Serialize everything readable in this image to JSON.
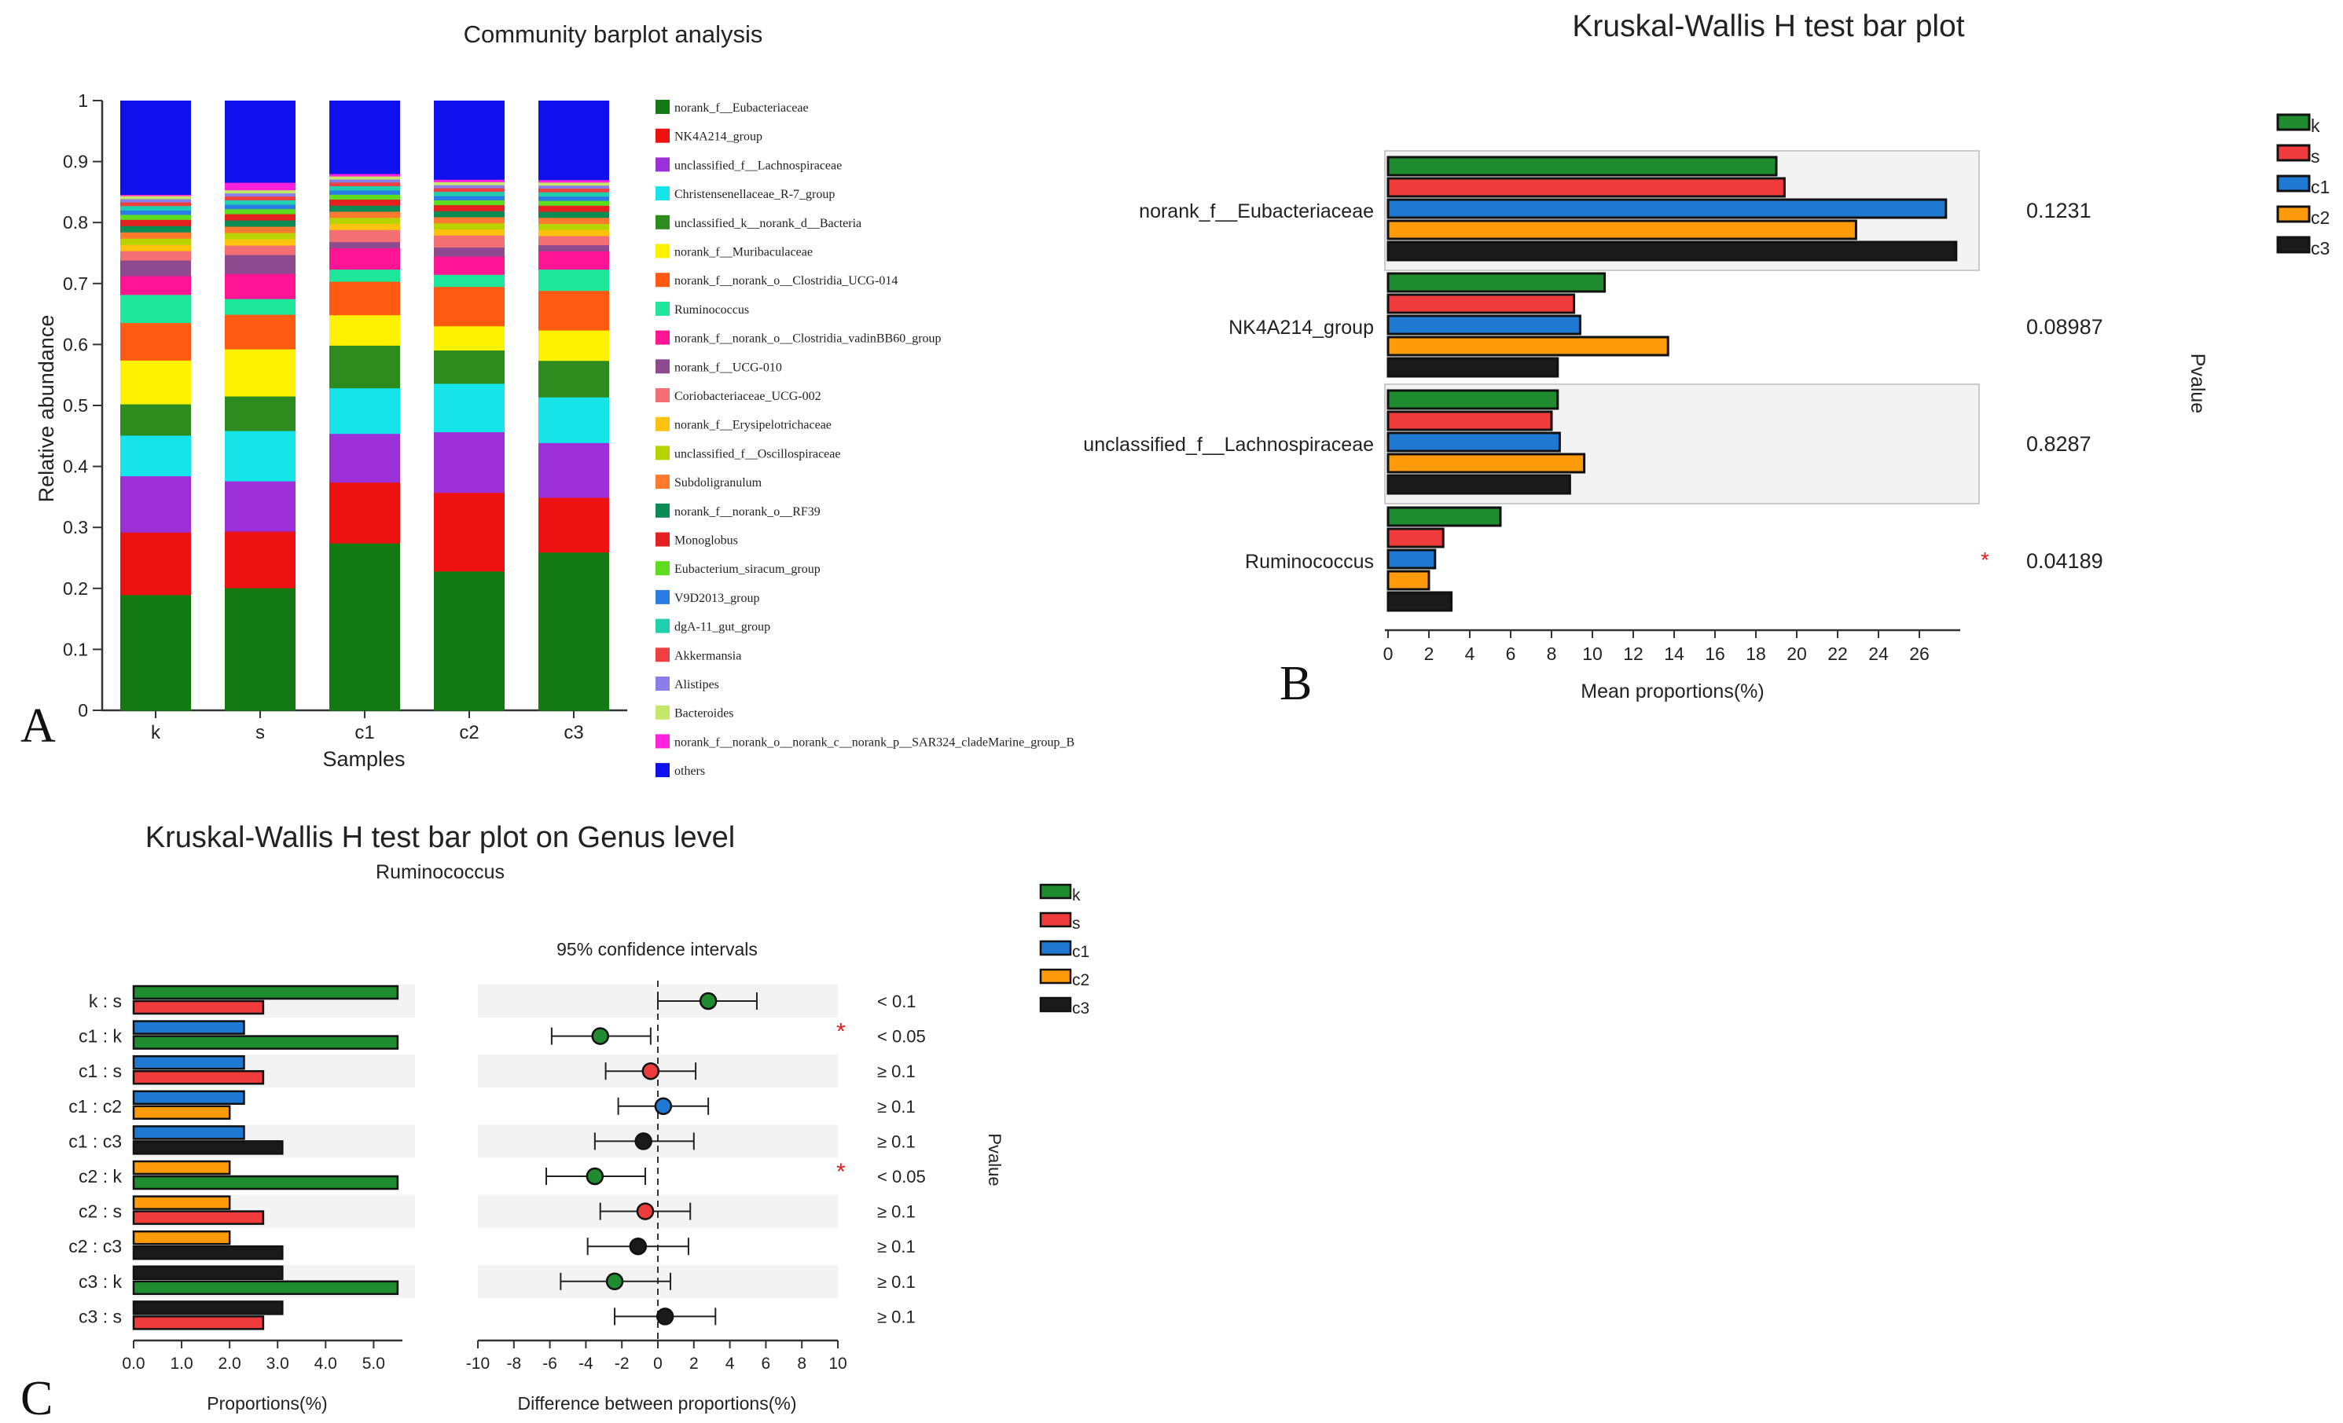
{
  "figure_labels": {
    "a": "A",
    "b": "B",
    "c": "C"
  },
  "colors": {
    "k": "#1e8c2f",
    "s": "#ef3b3b",
    "c1": "#1f78d1",
    "c2": "#ff9a0a",
    "c3": "#1a1a1a",
    "band": "#f3f3f3",
    "star": "#e02020"
  },
  "chart_data": [
    {
      "id": "A",
      "type": "bar",
      "stacked": true,
      "title": "Community barplot analysis",
      "xlabel": "Samples",
      "ylabel": "Relative abundance",
      "ylim": [
        0,
        1
      ],
      "yticks": [
        "0",
        "0.1",
        "0.2",
        "0.3",
        "0.4",
        "0.5",
        "0.6",
        "0.7",
        "0.8",
        "0.9",
        "1"
      ],
      "categories": [
        "k",
        "s",
        "c1",
        "c2",
        "c3"
      ],
      "series": [
        {
          "name": "norank_f__Eubacteriaceae",
          "color": "#137a13",
          "values": [
            0.185,
            0.195,
            0.275,
            0.23,
            0.26
          ]
        },
        {
          "name": "NK4A214_group",
          "color": "#ee1111",
          "values": [
            0.1,
            0.09,
            0.1,
            0.13,
            0.09
          ]
        },
        {
          "name": "unclassified_f__Lachnospiraceae",
          "color": "#9b30d8",
          "values": [
            0.09,
            0.08,
            0.08,
            0.1,
            0.09
          ]
        },
        {
          "name": "Christensenellaceae_R-7_group",
          "color": "#15e5e8",
          "values": [
            0.065,
            0.08,
            0.075,
            0.08,
            0.075
          ]
        },
        {
          "name": "unclassified_k__norank_d__Bacteria",
          "color": "#2e8b1e",
          "values": [
            0.05,
            0.055,
            0.07,
            0.055,
            0.06
          ]
        },
        {
          "name": "norank_f__Muribaculaceae",
          "color": "#fff200",
          "values": [
            0.07,
            0.075,
            0.05,
            0.04,
            0.05
          ]
        },
        {
          "name": "norank_f__norank_o__Clostridia_UCG-014",
          "color": "#ff5a12",
          "values": [
            0.06,
            0.055,
            0.055,
            0.065,
            0.065
          ]
        },
        {
          "name": "Ruminococcus",
          "color": "#1ee69a",
          "values": [
            0.045,
            0.025,
            0.02,
            0.02,
            0.035
          ]
        },
        {
          "name": "norank_f__norank_o__Clostridia_vadinBB60_group",
          "color": "#ff1493",
          "values": [
            0.03,
            0.04,
            0.035,
            0.03,
            0.03
          ]
        },
        {
          "name": "norank_f__UCG-010",
          "color": "#8e4a8e",
          "values": [
            0.025,
            0.03,
            0.01,
            0.015,
            0.01
          ]
        },
        {
          "name": "Coriobacteriaceae_UCG-002",
          "color": "#f36f73",
          "values": [
            0.015,
            0.015,
            0.02,
            0.02,
            0.015
          ]
        },
        {
          "name": "norank_f__Erysipelotrichaceae",
          "color": "#ffc20e",
          "values": [
            0.01,
            0.01,
            0.01,
            0.01,
            0.01
          ]
        },
        {
          "name": "unclassified_f__Oscillospiraceae",
          "color": "#b8d400",
          "values": [
            0.01,
            0.01,
            0.01,
            0.01,
            0.01
          ]
        },
        {
          "name": "Subdoligranulum",
          "color": "#ff7a2e",
          "values": [
            0.01,
            0.01,
            0.01,
            0.01,
            0.01
          ]
        },
        {
          "name": "norank_f__norank_o__RF39",
          "color": "#0d8b55",
          "values": [
            0.01,
            0.01,
            0.01,
            0.01,
            0.01
          ]
        },
        {
          "name": "Monoglobus",
          "color": "#e52020",
          "values": [
            0.01,
            0.01,
            0.01,
            0.01,
            0.01
          ]
        },
        {
          "name": "Eubacterium_siracum_group",
          "color": "#5edc1e",
          "values": [
            0.008,
            0.008,
            0.008,
            0.008,
            0.008
          ]
        },
        {
          "name": "V9D2013_group",
          "color": "#2c7ce6",
          "values": [
            0.007,
            0.007,
            0.007,
            0.007,
            0.007
          ]
        },
        {
          "name": "dgA-11_gut_group",
          "color": "#20cfae",
          "values": [
            0.007,
            0.007,
            0.007,
            0.007,
            0.007
          ]
        },
        {
          "name": "Akkermansia",
          "color": "#ee4040",
          "values": [
            0.006,
            0.006,
            0.006,
            0.006,
            0.006
          ]
        },
        {
          "name": "Alistipes",
          "color": "#8a7ee8",
          "values": [
            0.005,
            0.005,
            0.005,
            0.005,
            0.005
          ]
        },
        {
          "name": "Bacteroides",
          "color": "#c4e86a",
          "values": [
            0.005,
            0.005,
            0.005,
            0.005,
            0.005
          ]
        },
        {
          "name": "norank_f__norank_o__norank_c__norank_p__SAR324_cladeMarine_group_B",
          "color": "#ff22dd",
          "values": [
            0.002,
            0.012,
            0.004,
            0.004,
            0.004
          ]
        },
        {
          "name": "others",
          "color": "#1010ee",
          "values": [
            0.15,
            0.13,
            0.12,
            0.13,
            0.13
          ]
        }
      ]
    },
    {
      "id": "B",
      "type": "bar",
      "orientation": "horizontal",
      "title": "Kruskal-Wallis H test bar plot",
      "xlabel": "Mean proportions(%)",
      "xlim": [
        0,
        28
      ],
      "xticks": [
        "0",
        "2",
        "4",
        "6",
        "8",
        "10",
        "12",
        "14",
        "16",
        "18",
        "20",
        "22",
        "24",
        "26"
      ],
      "pvalue_label": "Pvalue",
      "groups": [
        "k",
        "s",
        "c1",
        "c2",
        "c3"
      ],
      "categories": [
        "norank_f__Eubacteriaceae",
        "NK4A214_group",
        "unclassified_f__Lachnospiraceae",
        "Ruminococcus"
      ],
      "series": [
        {
          "name": "k",
          "values": [
            19.0,
            10.6,
            8.3,
            5.5
          ]
        },
        {
          "name": "s",
          "values": [
            19.4,
            9.1,
            8.0,
            2.7
          ]
        },
        {
          "name": "c1",
          "values": [
            27.3,
            9.4,
            8.4,
            2.3
          ]
        },
        {
          "name": "c2",
          "values": [
            22.9,
            13.7,
            9.6,
            2.0
          ]
        },
        {
          "name": "c3",
          "values": [
            27.8,
            8.3,
            8.9,
            3.1
          ]
        }
      ],
      "pvalues": [
        "0.1231",
        "0.08987",
        "0.8287",
        "0.04189"
      ],
      "significant": [
        "",
        "",
        "",
        "*"
      ]
    },
    {
      "id": "C-left",
      "type": "bar",
      "orientation": "horizontal",
      "title": "Kruskal-Wallis H test bar plot on Genus level",
      "subtitle": "Ruminococcus",
      "xlabel": "Proportions(%)",
      "xlim": [
        0,
        5.6
      ],
      "xticks": [
        "0.0",
        "1.0",
        "2.0",
        "3.0",
        "4.0",
        "5.0"
      ],
      "comparisons": [
        {
          "label": "k : s",
          "groups": [
            "k",
            "s"
          ],
          "values": [
            5.5,
            2.7
          ]
        },
        {
          "label": "c1 : k",
          "groups": [
            "c1",
            "k"
          ],
          "values": [
            2.3,
            5.5
          ]
        },
        {
          "label": "c1 : s",
          "groups": [
            "c1",
            "s"
          ],
          "values": [
            2.3,
            2.7
          ]
        },
        {
          "label": "c1 : c2",
          "groups": [
            "c1",
            "c2"
          ],
          "values": [
            2.3,
            2.0
          ]
        },
        {
          "label": "c1 : c3",
          "groups": [
            "c1",
            "c3"
          ],
          "values": [
            2.3,
            3.1
          ]
        },
        {
          "label": "c2 : k",
          "groups": [
            "c2",
            "k"
          ],
          "values": [
            2.0,
            5.5
          ]
        },
        {
          "label": "c2 : s",
          "groups": [
            "c2",
            "s"
          ],
          "values": [
            2.0,
            2.7
          ]
        },
        {
          "label": "c2 : c3",
          "groups": [
            "c2",
            "c3"
          ],
          "values": [
            2.0,
            3.1
          ]
        },
        {
          "label": "c3 : k",
          "groups": [
            "c3",
            "k"
          ],
          "values": [
            3.1,
            5.5
          ]
        },
        {
          "label": "c3 : s",
          "groups": [
            "c3",
            "s"
          ],
          "values": [
            3.1,
            2.7
          ]
        }
      ]
    },
    {
      "id": "C-right",
      "type": "scatter",
      "title": "95% confidence intervals",
      "xlabel": "Difference between proportions(%)",
      "xlim": [
        -10,
        10
      ],
      "xticks": [
        "-10",
        "-8",
        "-6",
        "-4",
        "-2",
        "0",
        "2",
        "4",
        "6",
        "8",
        "10"
      ],
      "pvalue_label": "Pvalue",
      "points": [
        {
          "diff": 2.8,
          "low": 0.0,
          "high": 5.5,
          "group": "k",
          "pvalue": "< 0.1",
          "star": ""
        },
        {
          "diff": -3.2,
          "low": -5.9,
          "high": -0.4,
          "group": "k",
          "pvalue": "< 0.05",
          "star": "*"
        },
        {
          "diff": -0.4,
          "low": -2.9,
          "high": 2.1,
          "group": "s",
          "pvalue": "≥ 0.1",
          "star": ""
        },
        {
          "diff": 0.3,
          "low": -2.2,
          "high": 2.8,
          "group": "c1",
          "pvalue": "≥ 0.1",
          "star": ""
        },
        {
          "diff": -0.8,
          "low": -3.5,
          "high": 2.0,
          "group": "c3",
          "pvalue": "≥ 0.1",
          "star": ""
        },
        {
          "diff": -3.5,
          "low": -6.2,
          "high": -0.7,
          "group": "k",
          "pvalue": "< 0.05",
          "star": "*"
        },
        {
          "diff": -0.7,
          "low": -3.2,
          "high": 1.8,
          "group": "s",
          "pvalue": "≥ 0.1",
          "star": ""
        },
        {
          "diff": -1.1,
          "low": -3.9,
          "high": 1.7,
          "group": "c3",
          "pvalue": "≥ 0.1",
          "star": ""
        },
        {
          "diff": -2.4,
          "low": -5.4,
          "high": 0.7,
          "group": "k",
          "pvalue": "≥ 0.1",
          "star": ""
        },
        {
          "diff": 0.4,
          "low": -2.4,
          "high": 3.2,
          "group": "c3",
          "pvalue": "≥ 0.1",
          "star": ""
        }
      ]
    }
  ]
}
